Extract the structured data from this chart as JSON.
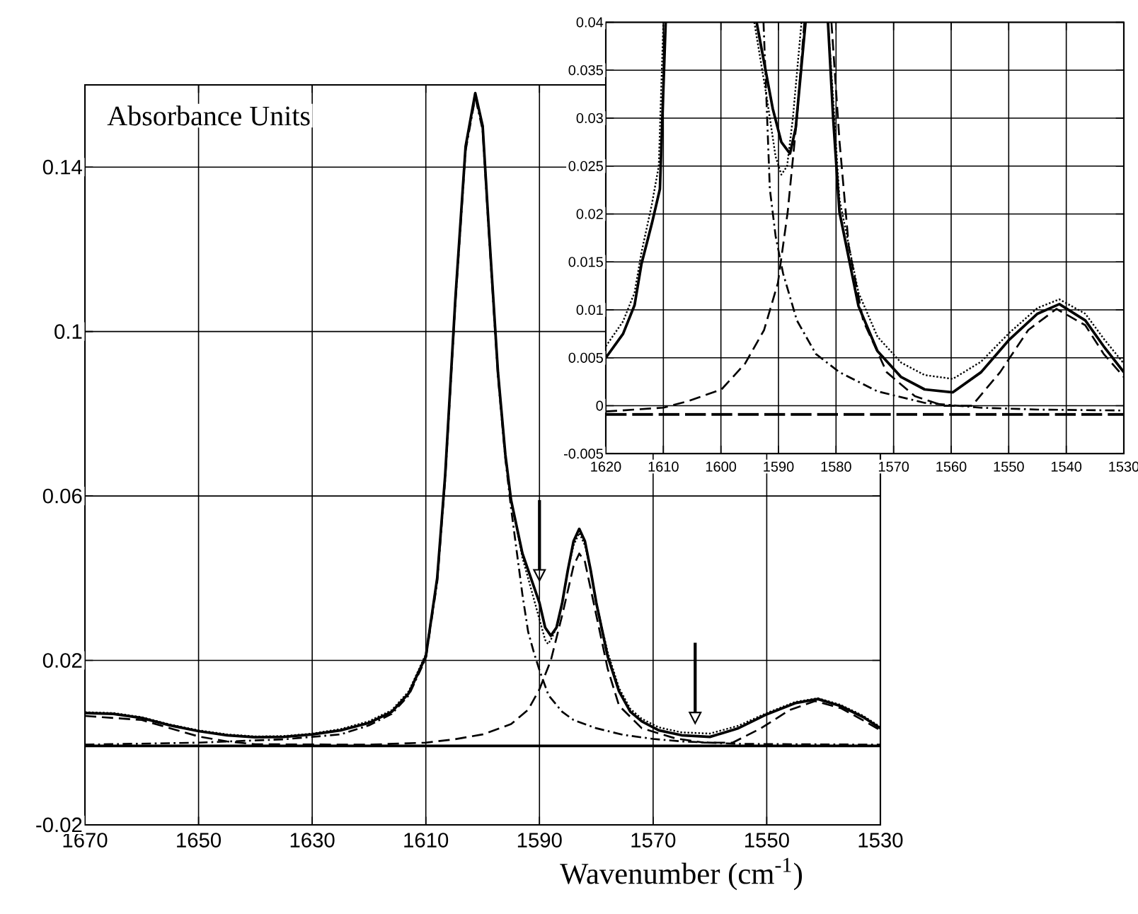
{
  "chart_data": [
    {
      "type": "line",
      "ylabel": "Absorbance Units",
      "xlabel": "Wavenumber (cm$^{-1}$)",
      "xlim": [
        1670,
        1530
      ],
      "xticks": [
        1670,
        1650,
        1630,
        1610,
        1590,
        1570,
        1550,
        1530
      ],
      "ylim": [
        -0.02,
        0.16
      ],
      "yticks": [
        -0.02,
        0.02,
        0.06,
        0.1,
        0.14
      ],
      "grid": true,
      "series": [
        {
          "color": "#000000",
          "line_style": "solid",
          "x": [
            1670,
            1665,
            1660,
            1655,
            1650,
            1645,
            1640,
            1635,
            1630,
            1625,
            1620,
            1616,
            1613,
            1610,
            1608,
            1606.6,
            1604.8,
            1603,
            1601.3,
            1600,
            1599,
            1597.3,
            1596,
            1595,
            1593,
            1591,
            1590,
            1589,
            1588,
            1587,
            1586,
            1585,
            1584,
            1583,
            1582,
            1581,
            1580,
            1578,
            1576,
            1574,
            1572,
            1569,
            1565,
            1560,
            1555,
            1550,
            1545,
            1541,
            1537,
            1533,
            1530
          ],
          "values": [
            0.0072,
            0.007,
            0.006,
            0.0042,
            0.0028,
            0.0018,
            0.0013,
            0.0014,
            0.002,
            0.003,
            0.0048,
            0.0075,
            0.012,
            0.021,
            0.04,
            0.065,
            0.108,
            0.145,
            0.158,
            0.15,
            0.127,
            0.09,
            0.07,
            0.059,
            0.046,
            0.038,
            0.034,
            0.028,
            0.026,
            0.028,
            0.034,
            0.042,
            0.049,
            0.052,
            0.049,
            0.042,
            0.034,
            0.021,
            0.0125,
            0.0075,
            0.0052,
            0.003,
            0.0018,
            0.0014,
            0.0035,
            0.0069,
            0.0096,
            0.0106,
            0.0089,
            0.0062,
            0.0035
          ]
        },
        {
          "color": "#000000",
          "line_style": "dotted",
          "x": [
            1670,
            1665,
            1660,
            1655,
            1650,
            1645,
            1640,
            1635,
            1630,
            1625,
            1620,
            1616,
            1613,
            1610,
            1608,
            1606.6,
            1604.8,
            1603,
            1601.3,
            1600,
            1599,
            1597.3,
            1596,
            1595,
            1593,
            1591,
            1590,
            1589,
            1588.5,
            1588,
            1587,
            1586,
            1585,
            1584,
            1583,
            1582,
            1581,
            1580,
            1578,
            1576,
            1574,
            1572,
            1569,
            1565,
            1560,
            1555,
            1550,
            1545,
            1541,
            1537,
            1533,
            1530
          ],
          "values": [
            0.0074,
            0.0072,
            0.0062,
            0.0044,
            0.003,
            0.002,
            0.0015,
            0.0016,
            0.0022,
            0.0033,
            0.0052,
            0.0079,
            0.0125,
            0.0215,
            0.04,
            0.065,
            0.108,
            0.145,
            0.157,
            0.15,
            0.127,
            0.09,
            0.07,
            0.059,
            0.045,
            0.035,
            0.03,
            0.025,
            0.024,
            0.025,
            0.028,
            0.034,
            0.042,
            0.048,
            0.051,
            0.048,
            0.042,
            0.034,
            0.022,
            0.0133,
            0.0082,
            0.0058,
            0.0037,
            0.0025,
            0.0022,
            0.0041,
            0.0072,
            0.0099,
            0.0108,
            0.0092,
            0.0065,
            0.0038
          ]
        },
        {
          "color": "#000000",
          "line_style": "dashdot",
          "x": [
            1670,
            1650,
            1635,
            1625,
            1620,
            1616,
            1613,
            1610,
            1608,
            1606.6,
            1604.8,
            1603,
            1601.3,
            1600,
            1599,
            1597.3,
            1596,
            1595,
            1593,
            1592,
            1591,
            1590,
            1588.4,
            1586,
            1584,
            1580,
            1575.3,
            1570,
            1565,
            1555,
            1545,
            1530
          ],
          "values": [
            -0.0005,
            0.0,
            0.0008,
            0.002,
            0.0042,
            0.007,
            0.0115,
            0.0205,
            0.039,
            0.064,
            0.107,
            0.144,
            0.157,
            0.149,
            0.126,
            0.089,
            0.069,
            0.057,
            0.036,
            0.027,
            0.022,
            0.0176,
            0.0115,
            0.0075,
            0.0055,
            0.0035,
            0.0019,
            0.0009,
            0.0003,
            -0.0003,
            -0.0004,
            -0.0005
          ]
        },
        {
          "color": "#000000",
          "line_style": "dashed",
          "x": [
            1670,
            1660,
            1655,
            1650,
            1645,
            1640,
            1620,
            1610,
            1605,
            1600,
            1595,
            1592,
            1590,
            1588,
            1586,
            1584,
            1583,
            1582,
            1580,
            1578,
            1576,
            1572,
            1566,
            1561,
            1556,
            1551,
            1546,
            1541.5,
            1537,
            1533,
            1530
          ],
          "values": [
            0.0065,
            0.0055,
            0.0035,
            0.0015,
            0.0003,
            -0.0004,
            -0.0005,
            0.0,
            0.0008,
            0.002,
            0.0045,
            0.008,
            0.013,
            0.02,
            0.031,
            0.043,
            0.046,
            0.044,
            0.031,
            0.018,
            0.009,
            0.0035,
            0.001,
            0.0,
            0.0,
            0.0035,
            0.0079,
            0.0101,
            0.0084,
            0.0054,
            0.003
          ]
        },
        {
          "color": "#000000",
          "line_style": "solid",
          "x": [
            1670,
            1530
          ],
          "values": [
            -0.0008,
            -0.0008
          ]
        }
      ]
    },
    {
      "type": "line",
      "xlim": [
        1620,
        1530
      ],
      "xticks": [
        1620,
        1610,
        1600,
        1590,
        1580,
        1570,
        1560,
        1550,
        1540,
        1530
      ],
      "ylim": [
        -0.005,
        0.04
      ],
      "yticks": [
        -0.005,
        0,
        0.005,
        0.01,
        0.015,
        0.02,
        0.025,
        0.03,
        0.035,
        0.04
      ],
      "grid": true,
      "series": [
        {
          "color": "#000000",
          "line_style": "solid",
          "x": [
            1620,
            1617,
            1615,
            1613.8,
            1612,
            1610.6,
            1609.6,
            1601,
            1593.8,
            1591,
            1589.5,
            1588,
            1587,
            1585.3,
            1583.5,
            1581.4,
            1580.5,
            1579.4,
            1576.1,
            1572.8,
            1568.7,
            1564.6,
            1559.7,
            1554.8,
            1549.9,
            1545,
            1541.2,
            1536.7,
            1533.5,
            1530
          ],
          "values": [
            0.005,
            0.0075,
            0.0105,
            0.0148,
            0.019,
            0.0226,
            0.04,
            null,
            0.04,
            0.031,
            0.0275,
            0.0263,
            0.029,
            0.04,
            null,
            0.04,
            0.03,
            0.0202,
            0.0104,
            0.0057,
            0.003,
            0.0017,
            0.0014,
            0.0035,
            0.0069,
            0.0096,
            0.0106,
            0.0089,
            0.0062,
            0.0035
          ]
        },
        {
          "color": "#000000",
          "line_style": "dotted",
          "x": [
            1620,
            1617,
            1615,
            1613.8,
            1612,
            1610.8,
            1610,
            1601,
            1594.2,
            1592,
            1590.5,
            1589.5,
            1588.5,
            1587.5,
            1586,
            1583.5,
            1581.4,
            1580.5,
            1579.4,
            1576.1,
            1572.8,
            1568.7,
            1564.6,
            1559.7,
            1554.8,
            1549.9,
            1545,
            1541.2,
            1536.7,
            1533.5,
            1530
          ],
          "values": [
            0.0062,
            0.0088,
            0.0118,
            0.016,
            0.021,
            0.025,
            0.04,
            null,
            0.04,
            0.032,
            0.026,
            0.0241,
            0.025,
            0.03,
            0.04,
            null,
            0.04,
            0.032,
            0.0215,
            0.0118,
            0.0072,
            0.0045,
            0.0032,
            0.0028,
            0.0046,
            0.0076,
            0.0102,
            0.0111,
            0.0096,
            0.007,
            0.0044
          ]
        },
        {
          "color": "#000000",
          "line_style": "dashdot",
          "x": [
            1592.6,
            1591.5,
            1590.5,
            1589.2,
            1586.8,
            1583.5,
            1579.4,
            1572.8,
            1564.6,
            1555,
            1545,
            1530
          ],
          "values": [
            0.04,
            0.0226,
            0.0177,
            0.0138,
            0.0089,
            0.0054,
            0.0035,
            0.0015,
            0.0003,
            -0.0002,
            -0.0004,
            -0.0005
          ]
        },
        {
          "color": "#000000",
          "line_style": "dashed",
          "x": [
            1620,
            1610,
            1605.6,
            1599.9,
            1595.8,
            1592.5,
            1590.1,
            1588.4,
            1586.8,
            1585.5,
            1583,
            1580.8,
            1579.4,
            1577.8,
            1575.3,
            1571.2,
            1566.3,
            1561.3,
            1556.4,
            1551.5,
            1546.6,
            1541.7,
            1536.7,
            1533.5,
            1530
          ],
          "values": [
            -0.0006,
            -0.0002,
            0.0005,
            0.0017,
            0.0044,
            0.0079,
            0.0128,
            0.0202,
            0.03,
            0.04,
            null,
            0.04,
            0.0276,
            0.0167,
            0.0089,
            0.0035,
            0.001,
            0.0,
            0.0,
            0.0035,
            0.0079,
            0.0101,
            0.0084,
            0.0054,
            0.003
          ]
        },
        {
          "color": "#000000",
          "line_style": "longdash",
          "x": [
            1620,
            1530
          ],
          "values": [
            -0.0009,
            -0.0009
          ]
        }
      ]
    }
  ]
}
